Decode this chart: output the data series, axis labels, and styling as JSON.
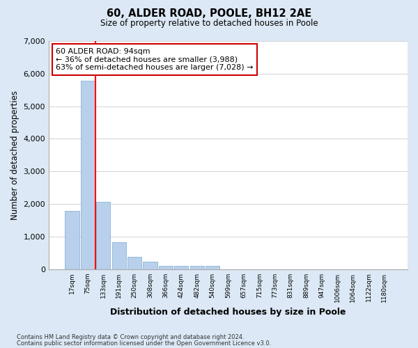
{
  "title1": "60, ALDER ROAD, POOLE, BH12 2AE",
  "title2": "Size of property relative to detached houses in Poole",
  "xlabel": "Distribution of detached houses by size in Poole",
  "ylabel": "Number of detached properties",
  "categories": [
    "17sqm",
    "75sqm",
    "133sqm",
    "191sqm",
    "250sqm",
    "308sqm",
    "366sqm",
    "424sqm",
    "482sqm",
    "540sqm",
    "599sqm",
    "657sqm",
    "715sqm",
    "773sqm",
    "831sqm",
    "889sqm",
    "947sqm",
    "1006sqm",
    "1064sqm",
    "1122sqm",
    "1180sqm"
  ],
  "values": [
    1780,
    5780,
    2060,
    820,
    370,
    230,
    110,
    100,
    95,
    90,
    0,
    0,
    0,
    0,
    0,
    0,
    0,
    0,
    0,
    0,
    0
  ],
  "bar_color": "#b8d0eb",
  "bar_edge_color": "#8ab4d8",
  "annotation_text": "60 ALDER ROAD: 94sqm\n← 36% of detached houses are smaller (3,988)\n63% of semi-detached houses are larger (7,028) →",
  "annotation_box_facecolor": "#ffffff",
  "annotation_box_edgecolor": "#cc0000",
  "ylim": [
    0,
    7000
  ],
  "yticks": [
    0,
    1000,
    2000,
    3000,
    4000,
    5000,
    6000,
    7000
  ],
  "red_line_x": 1.5,
  "fig_bg_color": "#dce8f5",
  "plot_bg_color": "#ffffff",
  "footnote1": "Contains HM Land Registry data © Crown copyright and database right 2024.",
  "footnote2": "Contains public sector information licensed under the Open Government Licence v3.0."
}
